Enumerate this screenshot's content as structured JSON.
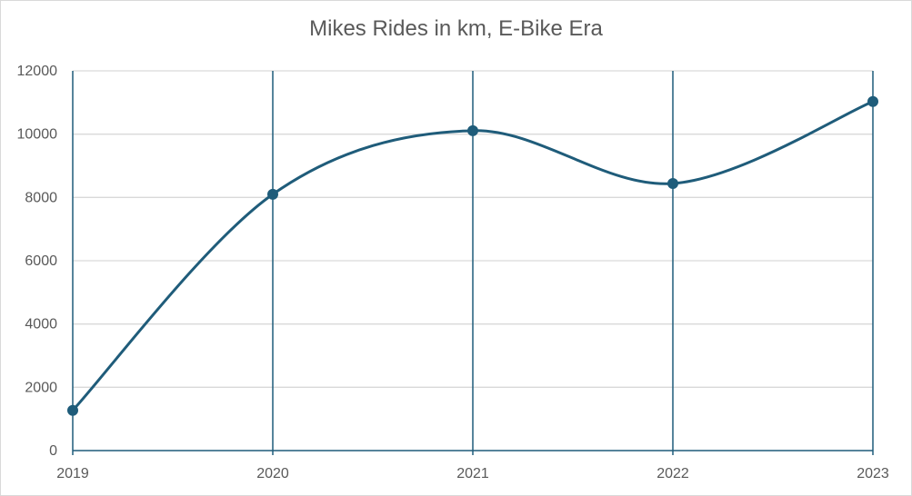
{
  "chart_data": {
    "type": "line",
    "title": "Mikes Rides in km, E-Bike Era",
    "xlabel": "",
    "ylabel": "",
    "categories": [
      "2019",
      "2020",
      "2021",
      "2022",
      "2023"
    ],
    "series": [
      {
        "values": [
          1270,
          8100,
          10110,
          8440,
          11030
        ],
        "color": "#1f5c7a",
        "smooth": true,
        "markers": true
      }
    ],
    "ylim": [
      0,
      12000
    ],
    "yticks": [
      "0",
      "2000",
      "4000",
      "6000",
      "8000",
      "10000",
      "12000"
    ],
    "grid": {
      "horizontal": true,
      "vertical_at_categories": true
    },
    "legend": "none",
    "colors": {
      "line": "#1f5c7a",
      "gridline": "#d9d9d9",
      "vertical_gridline": "#1f5c7a",
      "axis": "#1f5c7a",
      "text": "#595959"
    }
  }
}
